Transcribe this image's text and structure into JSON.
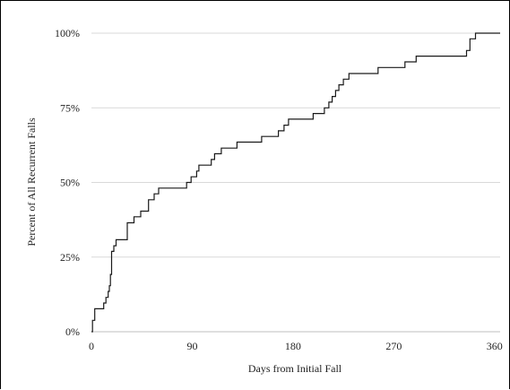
{
  "chart_data": {
    "type": "line",
    "step": true,
    "xlabel": "Days from Initial Fall",
    "ylabel": "Percent of All Recurrent Falls",
    "xlim": [
      0,
      365
    ],
    "ylim": [
      0,
      100
    ],
    "xticks": [
      0,
      90,
      180,
      270,
      360
    ],
    "yticks": [
      0,
      25,
      50,
      75,
      100
    ],
    "ytick_labels": [
      "0%",
      "25%",
      "50%",
      "75%",
      "100%"
    ],
    "grid": "horizontal",
    "series": [
      {
        "x": [
          0,
          1,
          3,
          6,
          11,
          13,
          15,
          16,
          17,
          18,
          19,
          20,
          22,
          25,
          32,
          35,
          38,
          44,
          47,
          51,
          56,
          60,
          62,
          64,
          68,
          75,
          80,
          85,
          89,
          92,
          94,
          96,
          98,
          99,
          102,
          107,
          110,
          112,
          116,
          122,
          130,
          140,
          152,
          158,
          167,
          172,
          176,
          186,
          198,
          204,
          208,
          212,
          215,
          218,
          221,
          225,
          230,
          236,
          240,
          244,
          250,
          256,
          262,
          270,
          280,
          290,
          300,
          315,
          330,
          335,
          338,
          343,
          346,
          365
        ],
        "y": [
          0,
          3.8,
          7.7,
          7.7,
          9.6,
          11.5,
          13.5,
          15.4,
          19.2,
          26.9,
          26.9,
          28.8,
          30.8,
          30.8,
          36.5,
          36.5,
          38.5,
          40.4,
          40.4,
          44.2,
          46.2,
          48.1,
          48.1,
          48.1,
          48.1,
          48.1,
          48.1,
          50.0,
          51.9,
          51.9,
          53.8,
          55.8,
          55.8,
          55.8,
          55.8,
          57.7,
          59.6,
          59.6,
          61.5,
          61.5,
          63.5,
          63.5,
          65.4,
          65.4,
          67.3,
          69.2,
          71.2,
          71.2,
          73.1,
          73.1,
          75.0,
          76.9,
          78.8,
          80.8,
          82.7,
          84.6,
          86.5,
          86.5,
          86.5,
          86.5,
          86.5,
          88.5,
          88.5,
          88.5,
          90.4,
          92.3,
          92.3,
          92.3,
          92.3,
          94.2,
          98.1,
          100.0,
          100.0,
          100.0
        ]
      }
    ]
  }
}
